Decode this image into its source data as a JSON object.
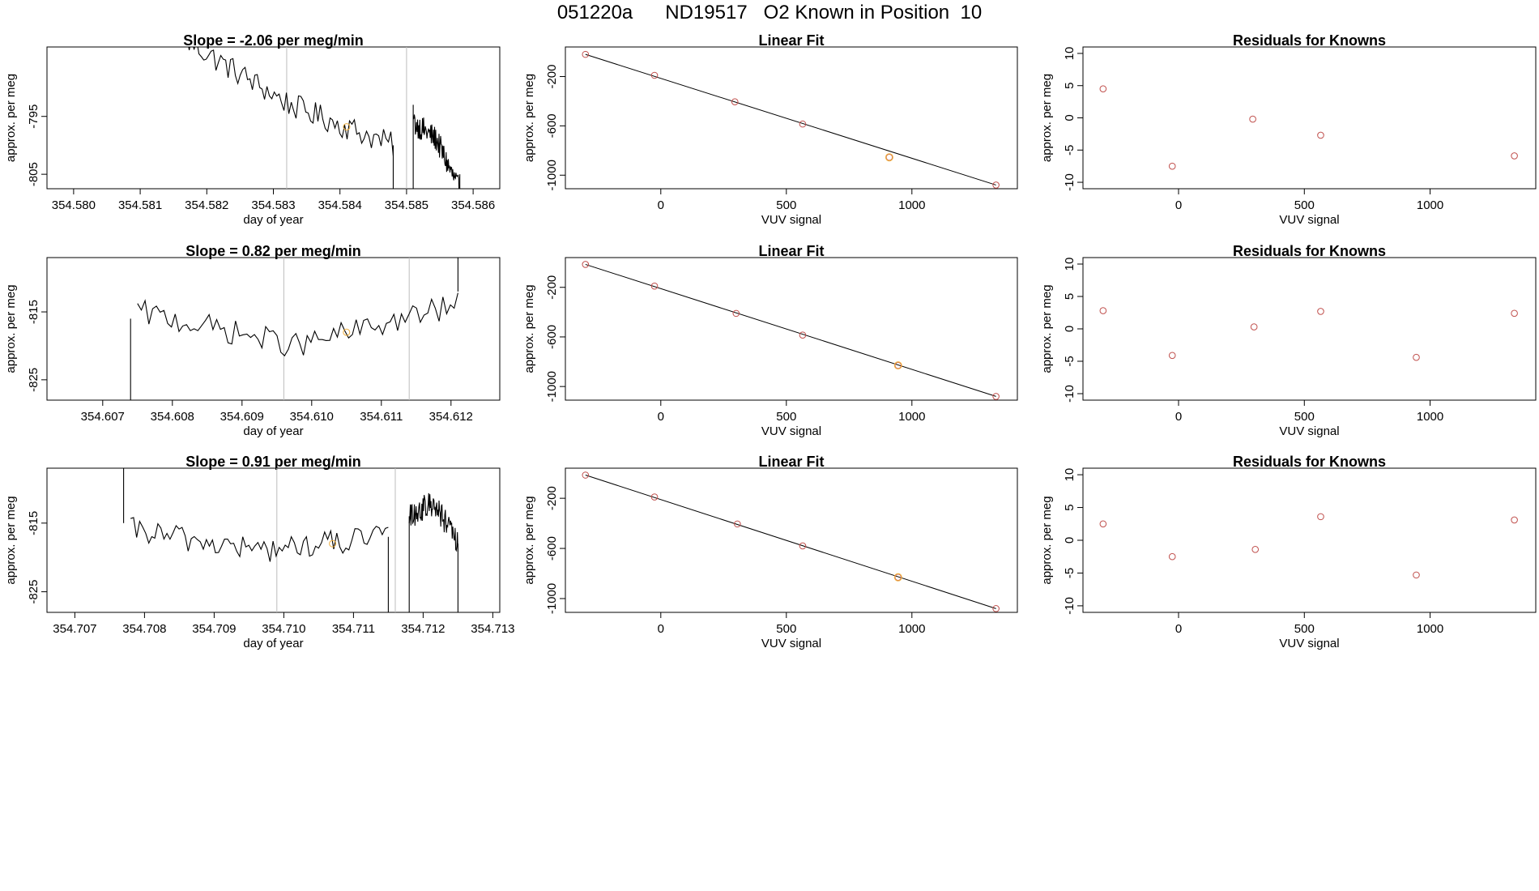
{
  "page": {
    "title": "051220a      ND19517   O2 Known in Position  10"
  },
  "colors": {
    "trace": "#000000",
    "reference_line": "#bdbdbd",
    "highlight": "#f0b040",
    "points": "#c0504d",
    "fit_line": "#000000"
  },
  "chart_data": [
    {
      "id": "r1-trace",
      "type": "line",
      "title": "Slope =  -2.06  per meg/min",
      "xlabel": "day of year",
      "ylabel": "approx. per meg",
      "xlim": [
        354.5796,
        354.5864
      ],
      "ylim": [
        -807.5,
        -783
      ],
      "xticks": [
        354.58,
        354.581,
        354.582,
        354.583,
        354.584,
        354.585,
        354.586
      ],
      "xtick_labels": [
        "354.580",
        "354.581",
        "354.582",
        "354.583",
        "354.584",
        "354.585",
        "354.586"
      ],
      "yticks": [
        -795,
        -805
      ],
      "ytick_labels": [
        "-795",
        "-805"
      ],
      "vlines": [
        354.5832,
        354.585
      ],
      "highlight": [
        354.5841,
        -796.8
      ],
      "segments": [
        {
          "x0": 354.5817,
          "x1": 354.5848,
          "levels": [
            -782,
            -793,
            -800
          ]
        },
        {
          "x0": 354.5851,
          "x1": 354.5858,
          "levels": [
            -796,
            -799,
            -808
          ]
        }
      ],
      "edges": [
        [
          354.5817,
          -778,
          -783
        ],
        [
          354.5848,
          -800,
          -812
        ],
        [
          354.5851,
          -812,
          -793
        ],
        [
          354.5858,
          -805,
          -812
        ]
      ]
    },
    {
      "id": "r1-fit",
      "type": "scatter",
      "title": "Linear Fit",
      "xlabel": "VUV signal",
      "ylabel": "approx. per meg",
      "xlim": [
        -380,
        1420
      ],
      "ylim": [
        -1110,
        40
      ],
      "xticks": [
        0,
        500,
        1000
      ],
      "xtick_labels": [
        "0",
        "500",
        "1000"
      ],
      "yticks": [
        -200,
        -600,
        -1000
      ],
      "ytick_labels": [
        "-200",
        "-600",
        "-1000"
      ],
      "points": [
        [
          -300,
          -20
        ],
        [
          -25,
          -190
        ],
        [
          295,
          -405
        ],
        [
          565,
          -585
        ],
        [
          910,
          -855
        ],
        [
          1335,
          -1080
        ]
      ],
      "highlight_points": [
        [
          910,
          -855
        ]
      ],
      "fit_line": [
        [
          -300,
          -20
        ],
        [
          1335,
          -1080
        ]
      ]
    },
    {
      "id": "r1-resid",
      "type": "scatter",
      "title": "Residuals for Knowns",
      "xlabel": "VUV signal",
      "ylabel": "approx. per meg",
      "xlim": [
        -380,
        1420
      ],
      "ylim": [
        -11,
        11
      ],
      "xticks": [
        0,
        500,
        1000
      ],
      "xtick_labels": [
        "0",
        "500",
        "1000"
      ],
      "yticks": [
        10,
        5,
        0,
        -5,
        -10
      ],
      "ytick_labels": [
        "10",
        "5",
        "0",
        "-5",
        "-10"
      ],
      "points": [
        [
          -300,
          4.5
        ],
        [
          -25,
          -7.5
        ],
        [
          295,
          -0.2
        ],
        [
          565,
          -2.7
        ],
        [
          1335,
          -5.9
        ]
      ]
    },
    {
      "id": "r2-trace",
      "type": "line",
      "title": "Slope =  0.82  per meg/min",
      "xlabel": "day of year",
      "ylabel": "approx. per meg",
      "xlim": [
        354.6062,
        354.6127
      ],
      "ylim": [
        -828,
        -807
      ],
      "xticks": [
        354.607,
        354.608,
        354.609,
        354.61,
        354.611,
        354.612
      ],
      "xtick_labels": [
        "354.607",
        "354.608",
        "354.609",
        "354.610",
        "354.611",
        "354.612"
      ],
      "yticks": [
        -815,
        -825
      ],
      "ytick_labels": [
        "-815",
        "-825"
      ],
      "vlines": [
        354.6096,
        354.6114
      ],
      "highlight": [
        354.6105,
        -818
      ],
      "segments": [
        {
          "x0": 354.6075,
          "x1": 354.6121,
          "levels": [
            -815,
            -820,
            -814
          ]
        }
      ],
      "edges": [
        [
          354.6074,
          -830,
          -816
        ],
        [
          354.6121,
          -812,
          -805
        ]
      ]
    },
    {
      "id": "r2-fit",
      "type": "scatter",
      "title": "Linear Fit",
      "xlabel": "VUV signal",
      "ylabel": "approx. per meg",
      "xlim": [
        -380,
        1420
      ],
      "ylim": [
        -1110,
        40
      ],
      "xticks": [
        0,
        500,
        1000
      ],
      "xtick_labels": [
        "0",
        "500",
        "1000"
      ],
      "yticks": [
        -200,
        -600,
        -1000
      ],
      "ytick_labels": [
        "-200",
        "-600",
        "-1000"
      ],
      "points": [
        [
          -300,
          -15
        ],
        [
          -25,
          -190
        ],
        [
          300,
          -410
        ],
        [
          565,
          -585
        ],
        [
          945,
          -830
        ],
        [
          1335,
          -1080
        ]
      ],
      "highlight_points": [
        [
          945,
          -830
        ]
      ],
      "fit_line": [
        [
          -300,
          -15
        ],
        [
          1335,
          -1080
        ]
      ]
    },
    {
      "id": "r2-resid",
      "type": "scatter",
      "title": "Residuals for Knowns",
      "xlabel": "VUV signal",
      "ylabel": "approx. per meg",
      "xlim": [
        -380,
        1420
      ],
      "ylim": [
        -11,
        11
      ],
      "xticks": [
        0,
        500,
        1000
      ],
      "xtick_labels": [
        "0",
        "500",
        "1000"
      ],
      "yticks": [
        10,
        5,
        0,
        -5,
        -10
      ],
      "ytick_labels": [
        "10",
        "5",
        "0",
        "-5",
        "-10"
      ],
      "points": [
        [
          -300,
          2.8
        ],
        [
          -25,
          -4.1
        ],
        [
          300,
          0.3
        ],
        [
          565,
          2.7
        ],
        [
          945,
          -4.4
        ],
        [
          1335,
          2.4
        ]
      ]
    },
    {
      "id": "r3-trace",
      "type": "line",
      "title": "Slope =  0.91  per meg/min",
      "xlabel": "day of year",
      "ylabel": "approx. per meg",
      "xlim": [
        354.7066,
        354.7131
      ],
      "ylim": [
        -828,
        -807
      ],
      "xticks": [
        354.707,
        354.708,
        354.709,
        354.71,
        354.711,
        354.712,
        354.713
      ],
      "xtick_labels": [
        "354.707",
        "354.708",
        "354.709",
        "354.710",
        "354.711",
        "354.712",
        "354.713"
      ],
      "yticks": [
        -815,
        -825
      ],
      "ytick_labels": [
        "-815",
        "-825"
      ],
      "vlines": [
        354.7099,
        354.7116
      ],
      "highlight": [
        354.7107,
        -818
      ],
      "segments": [
        {
          "x0": 354.7078,
          "x1": 354.7115,
          "levels": [
            -816,
            -819,
            -817
          ]
        },
        {
          "x0": 354.7118,
          "x1": 354.7125,
          "levels": [
            -814,
            -812,
            -818
          ]
        }
      ],
      "edges": [
        [
          354.7077,
          -806,
          -815
        ],
        [
          354.7115,
          -817,
          -830
        ],
        [
          354.7118,
          -830,
          -814
        ],
        [
          354.7125,
          -818,
          -830
        ]
      ]
    },
    {
      "id": "r3-fit",
      "type": "scatter",
      "title": "Linear Fit",
      "xlabel": "VUV signal",
      "ylabel": "approx. per meg",
      "xlim": [
        -380,
        1420
      ],
      "ylim": [
        -1110,
        40
      ],
      "xticks": [
        0,
        500,
        1000
      ],
      "xtick_labels": [
        "0",
        "500",
        "1000"
      ],
      "yticks": [
        -200,
        -600,
        -1000
      ],
      "ytick_labels": [
        "-200",
        "-600",
        "-1000"
      ],
      "points": [
        [
          -300,
          -15
        ],
        [
          -25,
          -190
        ],
        [
          305,
          -405
        ],
        [
          565,
          -580
        ],
        [
          945,
          -830
        ],
        [
          1335,
          -1080
        ]
      ],
      "highlight_points": [
        [
          945,
          -830
        ]
      ],
      "fit_line": [
        [
          -300,
          -15
        ],
        [
          1335,
          -1080
        ]
      ]
    },
    {
      "id": "r3-resid",
      "type": "scatter",
      "title": "Residuals for Knowns",
      "xlabel": "VUV signal",
      "ylabel": "approx. per meg",
      "xlim": [
        -380,
        1420
      ],
      "ylim": [
        -11,
        11
      ],
      "xticks": [
        0,
        500,
        1000
      ],
      "xtick_labels": [
        "0",
        "500",
        "1000"
      ],
      "yticks": [
        10,
        5,
        0,
        -5,
        -10
      ],
      "ytick_labels": [
        "10",
        "5",
        "0",
        "-5",
        "-10"
      ],
      "points": [
        [
          -300,
          2.5
        ],
        [
          -25,
          -2.5
        ],
        [
          305,
          -1.4
        ],
        [
          565,
          3.6
        ],
        [
          945,
          -5.3
        ],
        [
          1335,
          3.1
        ]
      ]
    }
  ]
}
